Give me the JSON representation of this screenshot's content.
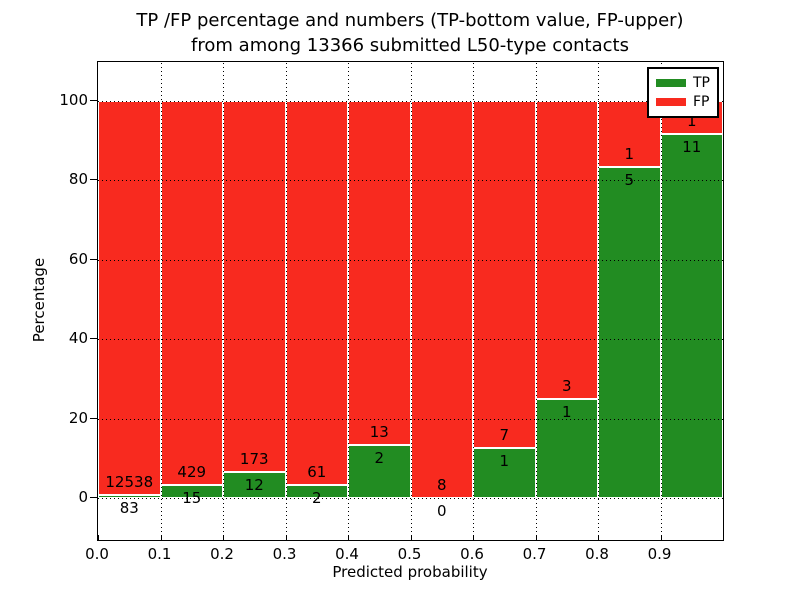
{
  "title_line1": "TP /FP percentage and numbers (TP-bottom value, FP-upper)",
  "title_line2": "from among 13366 submitted L50-type contacts",
  "axes": {
    "xlabel": "Predicted probability",
    "ylabel": "Percentage",
    "x_tick_labels": [
      "0.0",
      "0.1",
      "0.2",
      "0.3",
      "0.4",
      "0.5",
      "0.6",
      "0.7",
      "0.8",
      "0.9"
    ],
    "y_tick_labels": [
      "0",
      "20",
      "40",
      "60",
      "80",
      "100"
    ]
  },
  "legend": {
    "position": "upper right",
    "tp_label": "TP",
    "fp_label": "FP"
  },
  "colors": {
    "tp_green": "#228c22",
    "fp_red": "#f82a1f",
    "grid": "#000000",
    "background": "#ffffff",
    "bar_edge": "#ffffff"
  },
  "chart_data": {
    "type": "bar",
    "stacked": true,
    "normalized": "each bin scaled to 100%",
    "title": "TP /FP percentage and numbers (TP-bottom value, FP-upper)\nfrom among 13366 submitted L50-type contacts",
    "xlabel": "Predicted probability",
    "ylabel": "Percentage",
    "total_contacts": 13366,
    "bin_width": 0.1,
    "bin_starts": [
      0.0,
      0.1,
      0.2,
      0.3,
      0.4,
      0.5,
      0.6,
      0.7,
      0.8,
      0.9
    ],
    "series": [
      {
        "name": "TP",
        "color": "#228c22",
        "counts": [
          83,
          15,
          12,
          2,
          2,
          0,
          1,
          1,
          5,
          11
        ]
      },
      {
        "name": "FP",
        "color": "#f82a1f",
        "counts": [
          12538,
          429,
          173,
          61,
          13,
          8,
          7,
          3,
          1,
          1
        ]
      }
    ],
    "tp_percent_of_bin": [
      0.66,
      3.38,
      6.49,
      3.17,
      13.33,
      0.0,
      12.5,
      25.0,
      83.33,
      91.67
    ],
    "xticks": [
      0.0,
      0.1,
      0.2,
      0.3,
      0.4,
      0.5,
      0.6,
      0.7,
      0.8,
      0.9
    ],
    "yticks": [
      0,
      20,
      40,
      60,
      80,
      100
    ],
    "xlim": [
      0.0,
      1.0
    ],
    "ylim": [
      -10.8,
      109.8
    ],
    "grid": "dotted both axes",
    "legend_position": "upper right"
  }
}
